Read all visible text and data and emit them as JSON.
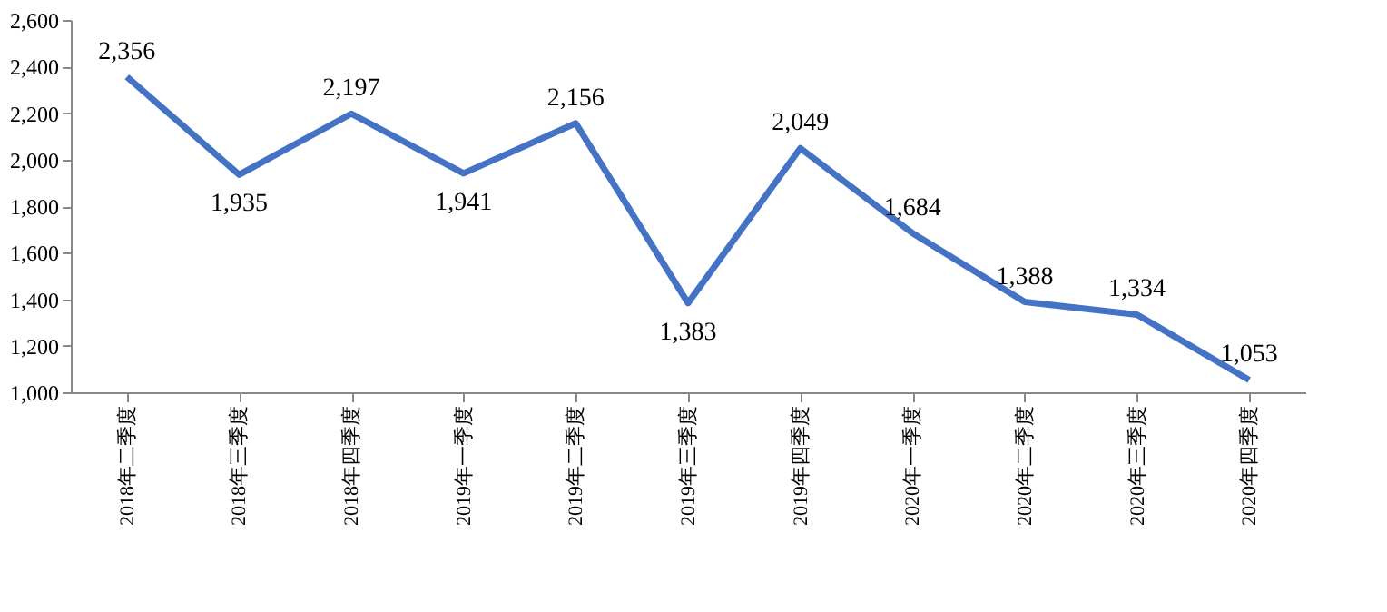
{
  "chart_data": {
    "type": "line",
    "categories": [
      "2018年二季度",
      "2018年三季度",
      "2018年四季度",
      "2019年一季度",
      "2019年二季度",
      "2019年三季度",
      "2019年四季度",
      "2020年一季度",
      "2020年二季度",
      "2020年三季度",
      "2020年四季度"
    ],
    "series": [
      {
        "color": "#4472c4",
        "values": [
          2356,
          1935,
          2197,
          1941,
          2156,
          1383,
          2049,
          1684,
          1388,
          1334,
          1053
        ],
        "value_labels": [
          "2,356",
          "1,935",
          "2,197",
          "1,941",
          "2,156",
          "1,383",
          "2,049",
          "1,684",
          "1,388",
          "1,334",
          "1,053"
        ]
      }
    ],
    "ylim": [
      1000,
      2600
    ],
    "yticks": [
      {
        "value": 1000,
        "label": "1,000"
      },
      {
        "value": 1200,
        "label": "1,200"
      },
      {
        "value": 1400,
        "label": "1,400"
      },
      {
        "value": 1600,
        "label": "1,600"
      },
      {
        "value": 1800,
        "label": "1,800"
      },
      {
        "value": 2000,
        "label": "2,000"
      },
      {
        "value": 2200,
        "label": "2,200"
      },
      {
        "value": 2400,
        "label": "2,400"
      },
      {
        "value": 2600,
        "label": "2,600"
      }
    ],
    "grid": false,
    "legend": false,
    "marker": "none",
    "line_style": "solid"
  }
}
